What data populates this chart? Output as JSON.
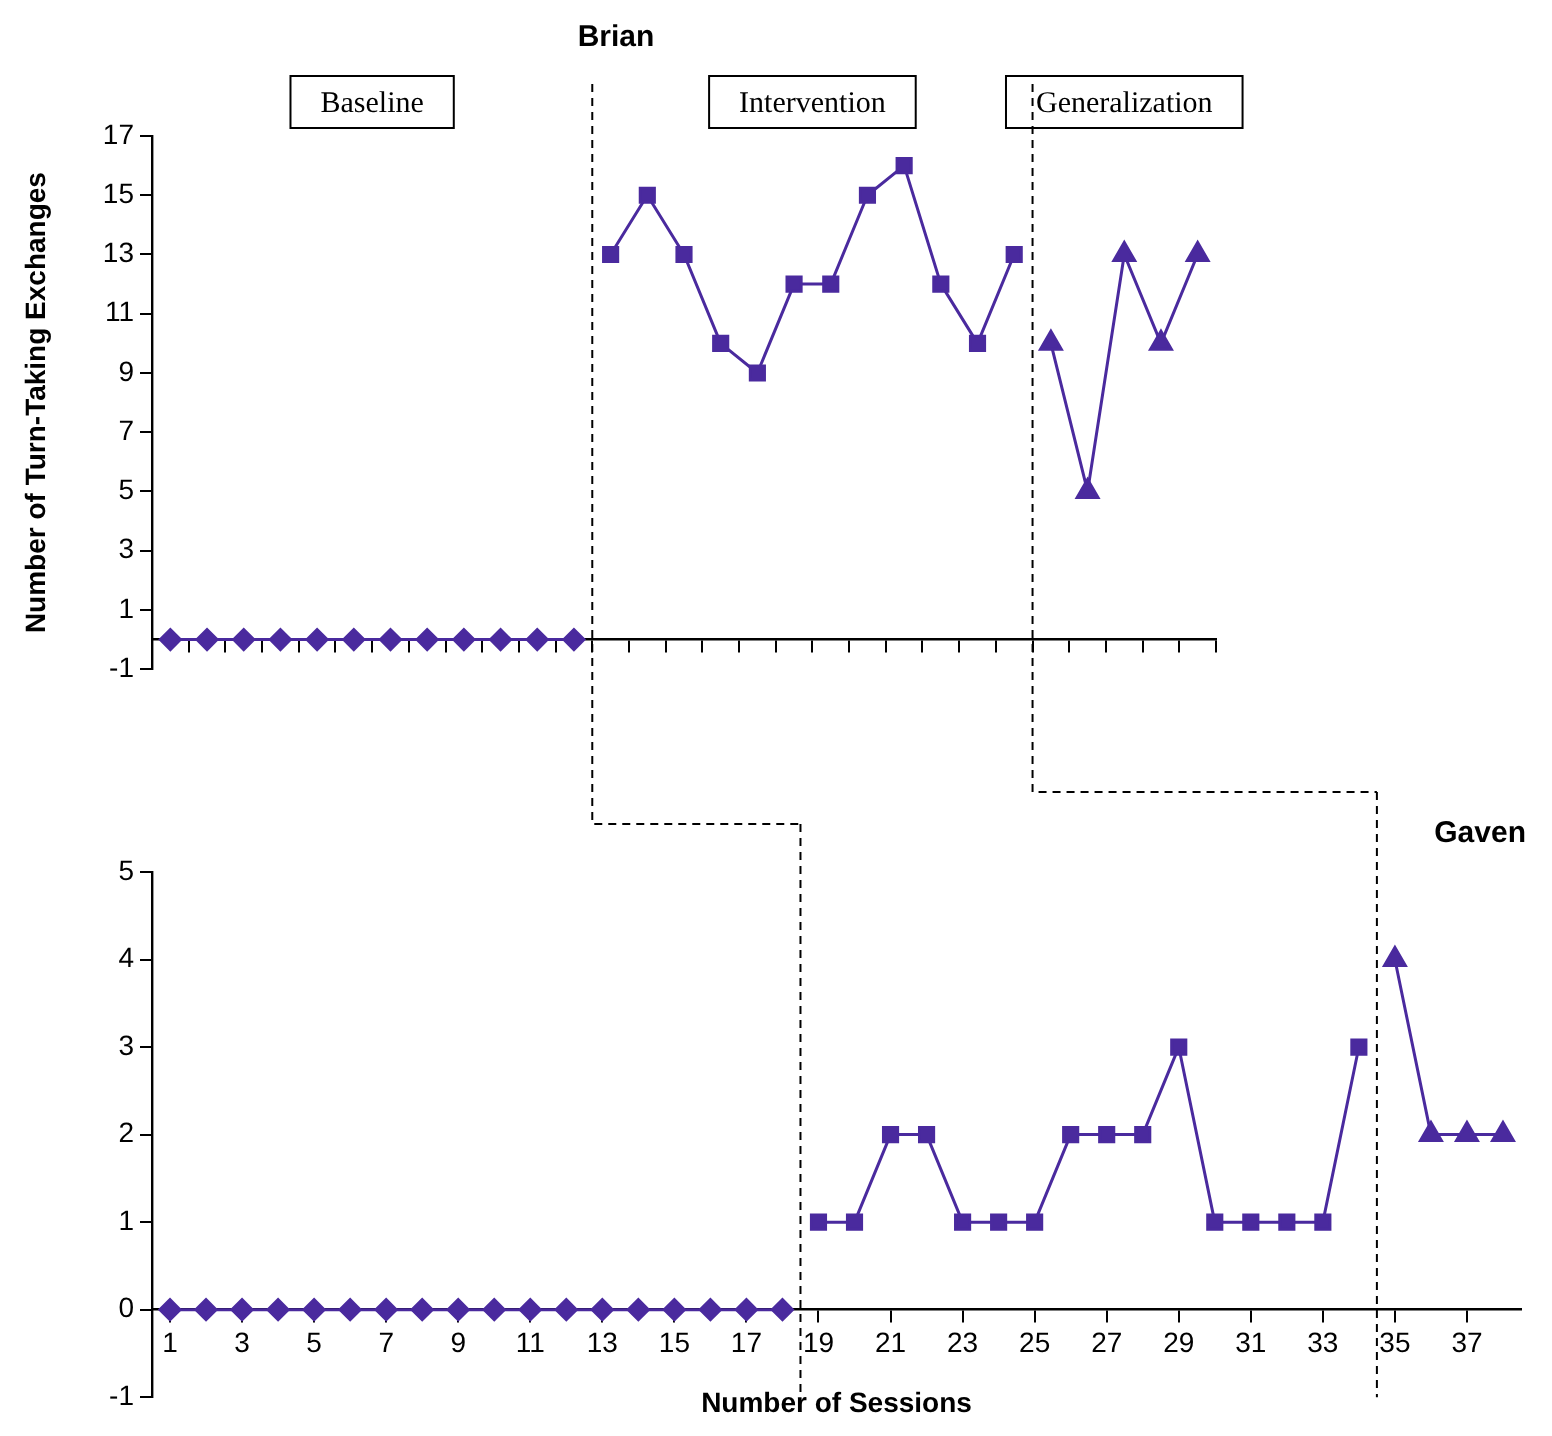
{
  "chart_data": [
    {
      "type": "line",
      "title": "Brian",
      "ylabel": "Number of Turn-Taking Exchanges",
      "annotations": [
        "Baseline",
        "Intervention",
        "Generalization"
      ],
      "categories": [
        null,
        null,
        null,
        null,
        null,
        null,
        null,
        null,
        null,
        null,
        null,
        null,
        null,
        null,
        null,
        null,
        null,
        null,
        null,
        null,
        null,
        null,
        null,
        null,
        null,
        null,
        null,
        null,
        null
      ],
      "ylim": [
        -1,
        17
      ],
      "yticks": [
        -1,
        1,
        3,
        5,
        7,
        9,
        11,
        13,
        15,
        17
      ],
      "tick_labels": "y",
      "series": [
        {
          "color": "#4a2a9e",
          "marker": "diamond",
          "values": [
            0,
            0,
            0,
            0,
            0,
            0,
            0,
            0,
            0,
            0,
            0,
            0,
            null,
            null,
            null,
            null,
            null,
            null,
            null,
            null,
            null,
            null,
            null,
            null,
            null,
            null,
            null,
            null,
            null
          ]
        },
        {
          "color": "#4a2a9e",
          "marker": "square",
          "values": [
            null,
            null,
            null,
            null,
            null,
            null,
            null,
            null,
            null,
            null,
            null,
            null,
            13,
            15,
            13,
            10,
            9,
            12,
            12,
            15,
            16,
            12,
            10,
            13,
            null,
            null,
            null,
            null,
            null
          ]
        },
        {
          "color": "#4a2a9e",
          "marker": "triangle",
          "values": [
            null,
            null,
            null,
            null,
            null,
            null,
            null,
            null,
            null,
            null,
            null,
            null,
            null,
            null,
            null,
            null,
            null,
            null,
            null,
            null,
            null,
            null,
            null,
            null,
            10,
            5,
            13,
            10,
            13
          ]
        }
      ]
    },
    {
      "type": "line",
      "title": "Gaven",
      "xlabel": "Number of Sessions",
      "xlim": [
        0.5,
        38.5
      ],
      "xticks": [
        1,
        3,
        5,
        7,
        9,
        11,
        13,
        15,
        17,
        19,
        21,
        23,
        25,
        27,
        29,
        31,
        33,
        35,
        37
      ],
      "ylim": [
        -1,
        5
      ],
      "yticks": [
        -1,
        0,
        1,
        2,
        3,
        4,
        5
      ],
      "series": [
        {
          "color": "#4a2a9e",
          "marker": "diamond",
          "x": [
            1,
            2,
            3,
            4,
            5,
            6,
            7,
            8,
            9,
            10,
            11,
            12,
            13,
            14,
            15,
            16,
            17,
            18
          ],
          "values": [
            0,
            0,
            0,
            0,
            0,
            0,
            0,
            0,
            0,
            0,
            0,
            0,
            0,
            0,
            0,
            0,
            0,
            0
          ]
        },
        {
          "color": "#4a2a9e",
          "marker": "square",
          "x": [
            19,
            20,
            21,
            22,
            23,
            24,
            25,
            26,
            27,
            28,
            29,
            30,
            31,
            32,
            33,
            34
          ],
          "values": [
            1,
            1,
            2,
            2,
            1,
            1,
            1,
            2,
            2,
            2,
            3,
            1,
            1,
            1,
            1,
            3
          ]
        },
        {
          "color": "#4a2a9e",
          "marker": "triangle",
          "x": [
            35,
            36,
            37,
            38
          ],
          "values": [
            4,
            2,
            2,
            2
          ]
        }
      ],
      "ref_lines": [
        {
          "axis": "x",
          "value": 18.5,
          "color": "#000000",
          "line_style": "dashed"
        },
        {
          "axis": "x",
          "value": 34.5,
          "color": "#000000",
          "line_style": "dashed"
        }
      ]
    }
  ]
}
